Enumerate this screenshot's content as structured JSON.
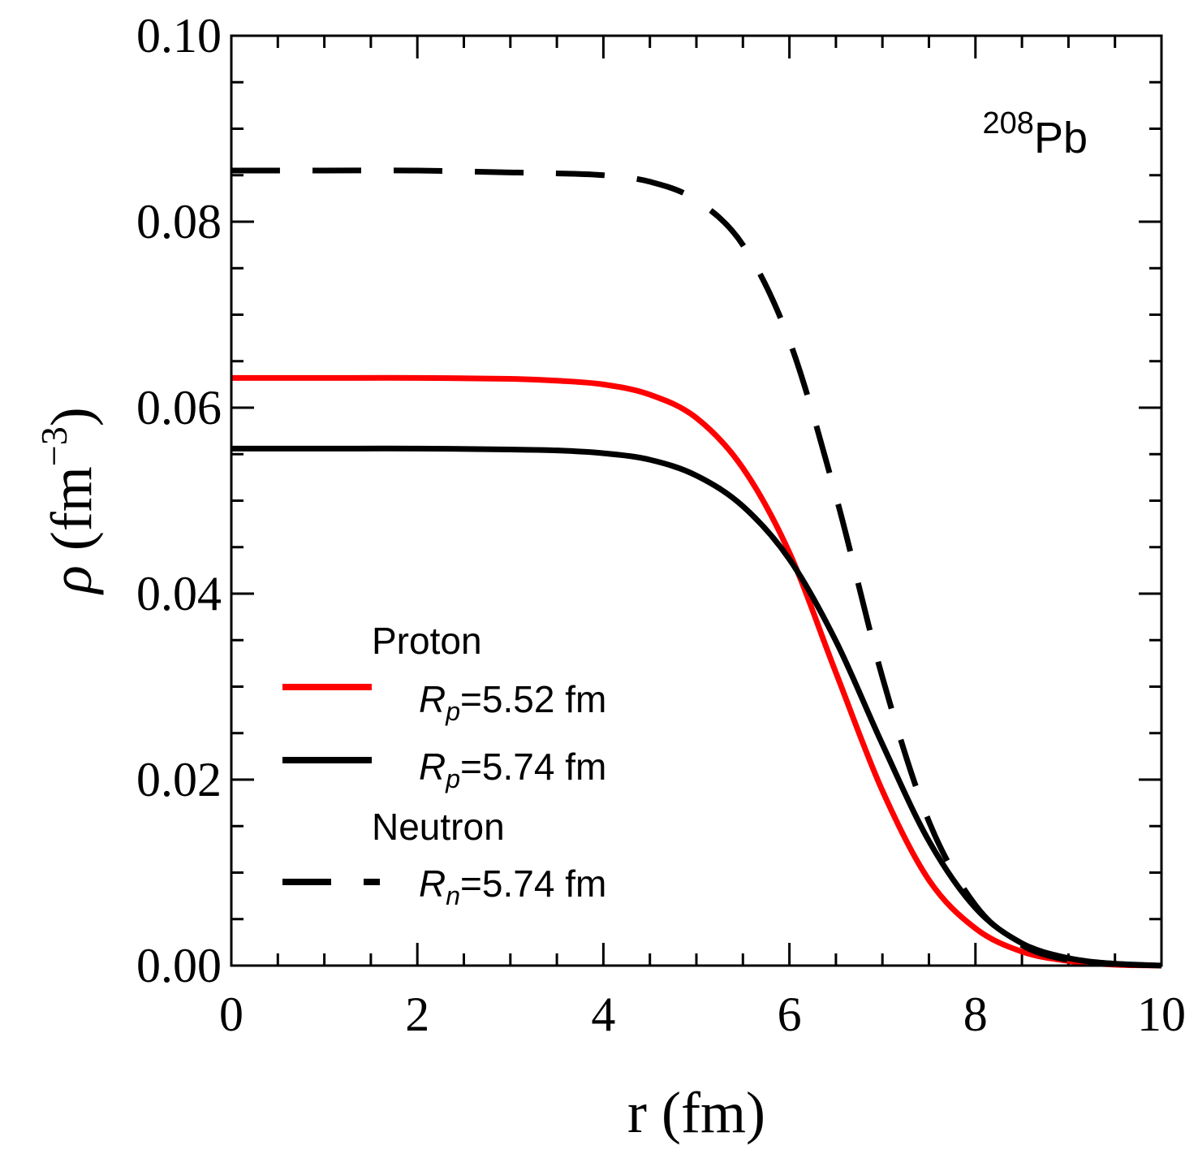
{
  "chart_data": {
    "type": "line",
    "title": "",
    "xlabel": "r (fm)",
    "ylabel": {
      "symbol": "ρ",
      "unit_open": " (fm",
      "exponent": "−3",
      "unit_close": ")"
    },
    "xlim": [
      0,
      10
    ],
    "ylim": [
      0,
      0.1
    ],
    "x_ticks": [
      0,
      2,
      4,
      6,
      8,
      10
    ],
    "x_tick_labels": [
      "0",
      "2",
      "4",
      "6",
      "8",
      "10"
    ],
    "y_ticks": [
      0,
      0.02,
      0.04,
      0.06,
      0.08,
      0.1
    ],
    "y_tick_labels": [
      "0.00",
      "0.02",
      "0.04",
      "0.06",
      "0.08",
      "0.10"
    ],
    "grid": false,
    "annotation": {
      "mass_number": "208",
      "element": "Pb"
    },
    "legend": {
      "position": "lower-left",
      "groups": [
        {
          "heading": "Proton",
          "entries": [
            {
              "symbol": "R",
              "subscript": "p",
              "text": "=5.52 fm",
              "series_index": 0
            },
            {
              "symbol": "R",
              "subscript": "p",
              "text": "=5.74 fm",
              "series_index": 1
            }
          ]
        },
        {
          "heading": "Neutron",
          "entries": [
            {
              "symbol": "R",
              "subscript": "n",
              "text": "=5.74 fm",
              "series_index": 2
            }
          ]
        }
      ]
    },
    "series": [
      {
        "name": "Proton Rp=5.52 fm",
        "color": "#ff0000",
        "style": "solid",
        "x": [
          0,
          1,
          2,
          3,
          3.5,
          4,
          4.5,
          5,
          5.5,
          6,
          6.5,
          7,
          7.5,
          8,
          8.5,
          9,
          9.5,
          10
        ],
        "y": [
          0.0632,
          0.0632,
          0.0632,
          0.0631,
          0.0629,
          0.0625,
          0.0614,
          0.0589,
          0.0535,
          0.0444,
          0.0315,
          0.0188,
          0.0092,
          0.004,
          0.0015,
          0.0005,
          0.0001,
          0.0
        ]
      },
      {
        "name": "Proton Rp=5.74 fm",
        "color": "#000000",
        "style": "solid",
        "x": [
          0,
          1,
          2,
          3,
          3.5,
          4,
          4.5,
          5,
          5.5,
          6,
          6.5,
          7,
          7.5,
          8,
          8.5,
          9,
          9.5,
          10
        ],
        "y": [
          0.0556,
          0.0556,
          0.0556,
          0.0555,
          0.0554,
          0.0551,
          0.0544,
          0.0527,
          0.0494,
          0.0437,
          0.0349,
          0.0238,
          0.0134,
          0.0062,
          0.0024,
          0.0008,
          0.0002,
          0.0
        ]
      },
      {
        "name": "Neutron Rn=5.74 fm",
        "color": "#000000",
        "style": "dashed",
        "x": [
          0,
          1,
          2,
          3,
          3.5,
          4,
          4.5,
          5,
          5.5,
          6,
          6.5,
          7,
          7.5,
          8,
          8.5,
          9,
          9.5,
          10
        ],
        "y": [
          0.0855,
          0.0855,
          0.0855,
          0.0853,
          0.0852,
          0.085,
          0.0843,
          0.0823,
          0.0775,
          0.0672,
          0.0505,
          0.031,
          0.0155,
          0.0065,
          0.0022,
          0.0006,
          0.0002,
          0.0
        ]
      }
    ]
  }
}
